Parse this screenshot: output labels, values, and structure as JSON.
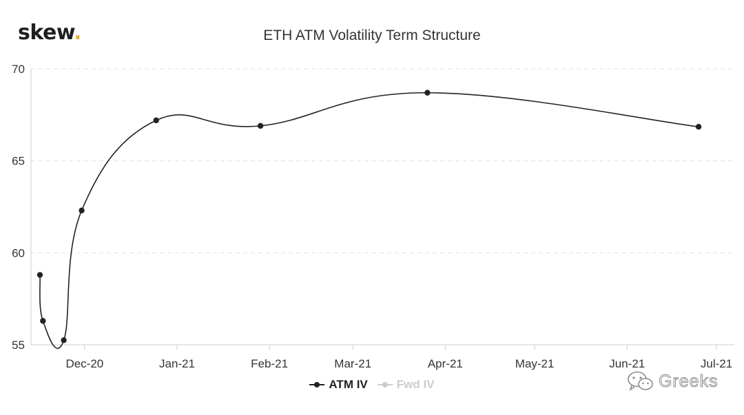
{
  "brand": {
    "name": "skew",
    "dot": "."
  },
  "watermark": {
    "text": "Greeks",
    "icon": "wechat-icon"
  },
  "chart_data": {
    "type": "line",
    "title": "ETH ATM Volatility Term Structure",
    "xlabel": "",
    "ylabel": "",
    "ylim": [
      55,
      70
    ],
    "yticks": [
      55,
      60,
      65,
      70
    ],
    "xlim": [
      "2020-11-13",
      "2021-07-07"
    ],
    "xticks": [
      {
        "date": "2020-12-01",
        "label": "Dec-20"
      },
      {
        "date": "2021-01-01",
        "label": "Jan-21"
      },
      {
        "date": "2021-02-01",
        "label": "Feb-21"
      },
      {
        "date": "2021-03-01",
        "label": "Mar-21"
      },
      {
        "date": "2021-04-01",
        "label": "Apr-21"
      },
      {
        "date": "2021-05-01",
        "label": "May-21"
      },
      {
        "date": "2021-06-01",
        "label": "Jun-21"
      },
      {
        "date": "2021-07-01",
        "label": "Jul-21"
      }
    ],
    "grid": "horizontal-dashed",
    "legend_position": "bottom-center",
    "series": [
      {
        "name": "ATM IV",
        "color": "#222222",
        "visible": true,
        "points": [
          {
            "x": "2020-11-16",
            "y": 58.8
          },
          {
            "x": "2020-11-17",
            "y": 56.3
          },
          {
            "x": "2020-11-24",
            "y": 55.25
          },
          {
            "x": "2020-11-30",
            "y": 62.3
          },
          {
            "x": "2020-12-25",
            "y": 67.2
          },
          {
            "x": "2021-01-29",
            "y": 66.9
          },
          {
            "x": "2021-03-26",
            "y": 68.7
          },
          {
            "x": "2021-06-25",
            "y": 66.85
          }
        ]
      },
      {
        "name": "Fwd IV",
        "color": "#cccccc",
        "visible": false,
        "points": []
      }
    ]
  }
}
